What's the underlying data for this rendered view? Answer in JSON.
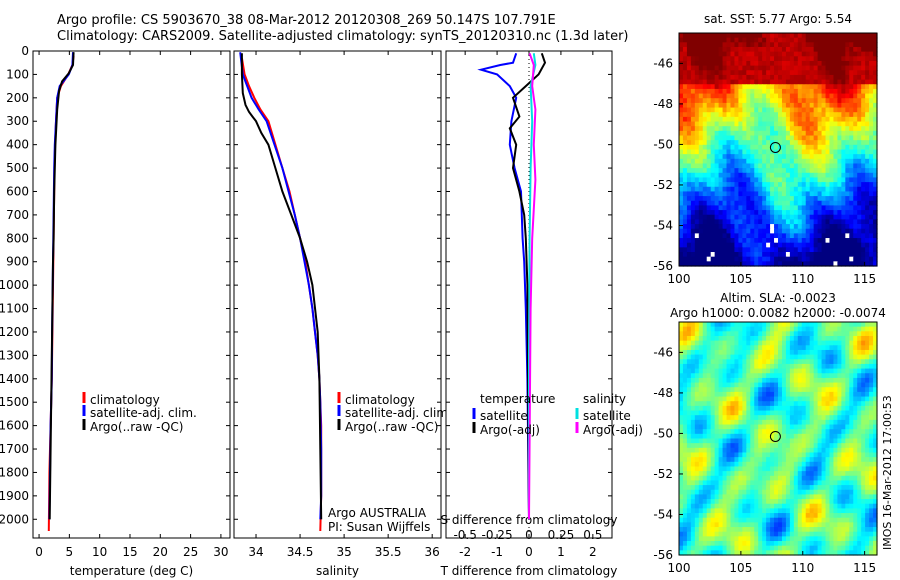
{
  "header": {
    "line1": "Argo profile: CS 5903670_38 08-Mar-2012 20120308_269 50.147S 107.791E",
    "line2": "Climatology: CARS2009. Satellite-adjusted climatology: synTS_20120310.nc (1.3d later)"
  },
  "colors": {
    "clim": "#ff0000",
    "sat": "#0000ff",
    "argo": "#000000",
    "cyan": "#00e0e0",
    "magenta": "#ff00ff"
  },
  "chart_data": [
    {
      "type": "line",
      "xlabel": "temperature (deg C)",
      "ylim": [
        2080,
        0
      ],
      "xlim": [
        -1,
        31.5
      ],
      "xticks": [
        0,
        5,
        10,
        15,
        20,
        25,
        30
      ],
      "yticks": [
        0,
        100,
        200,
        300,
        400,
        500,
        600,
        700,
        800,
        900,
        1000,
        1100,
        1200,
        1300,
        1400,
        1500,
        1600,
        1700,
        1800,
        1900,
        2000
      ],
      "legend": [
        "climatology",
        "satellite-adj. clim.",
        "Argo(..raw -QC)"
      ],
      "series": [
        {
          "name": "climatology",
          "color": "clim",
          "x": [
            5.7,
            5.5,
            4.8,
            3.6,
            3.0,
            2.8,
            2.65,
            2.55,
            2.5,
            2.45,
            2.4,
            2.35,
            2.3,
            2.25,
            2.2,
            2.1,
            2.0,
            1.9,
            1.8,
            1.7,
            1.6
          ],
          "y": [
            20,
            60,
            100,
            150,
            200,
            300,
            400,
            500,
            600,
            700,
            800,
            900,
            1000,
            1100,
            1200,
            1400,
            1500,
            1600,
            1700,
            1800,
            2050
          ]
        },
        {
          "name": "satellite-adj. clim.",
          "color": "sat",
          "x": [
            5.6,
            5.5,
            4.9,
            3.4,
            3.0,
            2.8,
            2.6,
            2.5,
            2.45,
            2.4,
            2.35,
            2.3,
            2.25,
            2.2,
            2.15,
            2.1,
            2.0,
            1.9,
            1.8,
            1.7
          ],
          "y": [
            5,
            60,
            100,
            150,
            200,
            300,
            400,
            500,
            600,
            700,
            800,
            900,
            1000,
            1100,
            1200,
            1400,
            1500,
            1600,
            1800,
            2000
          ]
        },
        {
          "name": "Argo(..raw -QC)",
          "color": "argo",
          "x": [
            5.7,
            5.6,
            4.9,
            3.8,
            3.3,
            3.0,
            2.9,
            2.7,
            2.6,
            2.5,
            2.45,
            2.4,
            2.3,
            2.25,
            2.2,
            2.1,
            2.0,
            1.9,
            1.8,
            1.75
          ],
          "y": [
            5,
            60,
            95,
            130,
            170,
            250,
            300,
            400,
            500,
            600,
            700,
            800,
            900,
            1000,
            1100,
            1300,
            1500,
            1700,
            1900,
            2000
          ]
        }
      ]
    },
    {
      "type": "line",
      "xlabel": "salinity",
      "ylim": [
        2080,
        0
      ],
      "xlim": [
        33.75,
        36.1
      ],
      "xticks": [
        34,
        34.5,
        35,
        35.5,
        36
      ],
      "xtick_labels": [
        "34",
        "34.5",
        "35",
        "35.5",
        "36"
      ],
      "legend": [
        "climatology",
        "satellite-adj. clim.",
        "Argo(..raw -QC)"
      ],
      "annotation": [
        "Argo AUSTRALIA",
        "PI: Susan Wijffels"
      ],
      "series": [
        {
          "name": "climatology",
          "color": "clim",
          "x": [
            33.84,
            33.87,
            33.92,
            33.98,
            34.05,
            34.14,
            34.22,
            34.3,
            34.38,
            34.44,
            34.5,
            34.56,
            34.6,
            34.64,
            34.67,
            34.7,
            34.72,
            34.73,
            34.74,
            34.74,
            34.74,
            34.73
          ],
          "y": [
            30,
            100,
            150,
            200,
            250,
            300,
            400,
            500,
            600,
            700,
            800,
            900,
            1000,
            1100,
            1200,
            1300,
            1400,
            1500,
            1600,
            1700,
            1900,
            2050
          ]
        },
        {
          "name": "satellite-adj. clim.",
          "color": "sat",
          "x": [
            33.82,
            33.85,
            33.9,
            33.95,
            34.03,
            34.12,
            34.21,
            34.3,
            34.37,
            34.44,
            34.5,
            34.55,
            34.6,
            34.64,
            34.67,
            34.7,
            34.72,
            34.73,
            34.74,
            34.74,
            34.73
          ],
          "y": [
            5,
            100,
            150,
            200,
            250,
            300,
            400,
            500,
            600,
            700,
            800,
            900,
            1000,
            1100,
            1200,
            1300,
            1400,
            1500,
            1700,
            1900,
            2000
          ]
        },
        {
          "name": "Argo(..raw -QC)",
          "color": "argo",
          "x": [
            33.84,
            33.84,
            33.85,
            33.88,
            33.92,
            33.96,
            34.0,
            34.06,
            34.14,
            34.22,
            34.3,
            34.4,
            34.5,
            34.58,
            34.64,
            34.7,
            34.72,
            34.73,
            34.74
          ],
          "y": [
            10,
            100,
            180,
            230,
            260,
            280,
            300,
            350,
            400,
            500,
            600,
            700,
            800,
            900,
            1000,
            1200,
            1400,
            1700,
            2000
          ]
        }
      ]
    },
    {
      "type": "line",
      "xlabel": "T difference from climatology",
      "xlim": [
        -2.6,
        2.6
      ],
      "xticks": [
        -2,
        -1,
        0,
        1,
        2
      ],
      "top_axis": {
        "label": "S difference from climatology",
        "ticks": [
          "-0.5",
          "-0.25",
          "0",
          "0.25",
          "0.5"
        ]
      },
      "legend_groups": [
        {
          "title": "temperature",
          "items": [
            "satellite",
            "Argo(-adj)"
          ]
        },
        {
          "title": "salinity",
          "items": [
            "satellite",
            "Argo(-adj)"
          ]
        }
      ],
      "series": [
        {
          "name": "satellite",
          "group": "temperature",
          "color": "sat",
          "x": [
            -0.4,
            -0.5,
            -0.9,
            -1.5,
            -1.0,
            -0.6,
            -0.4,
            -0.55,
            -0.6,
            -0.45,
            -0.25,
            -0.2,
            -0.15,
            -0.1,
            -0.05,
            0
          ],
          "y": [
            10,
            50,
            60,
            80,
            100,
            150,
            200,
            300,
            400,
            500,
            600,
            800,
            900,
            1100,
            1400,
            2000
          ]
        },
        {
          "name": "Argo(-adj)",
          "group": "temperature",
          "color": "argo",
          "x": [
            0.4,
            0.5,
            0.3,
            -0.1,
            -0.5,
            -0.3,
            -0.6,
            -0.4,
            -0.5,
            -0.3,
            -0.15,
            -0.1,
            -0.05,
            0
          ],
          "y": [
            10,
            50,
            100,
            150,
            200,
            280,
            330,
            400,
            500,
            600,
            700,
            800,
            1000,
            2000
          ]
        },
        {
          "name": "satellite",
          "group": "salinity",
          "color": "cyan",
          "x": [
            0.15,
            0.2,
            0.05,
            0.1,
            0.05,
            0.02,
            0.0,
            0.0
          ],
          "y": [
            10,
            60,
            150,
            300,
            500,
            800,
            1300,
            2000
          ]
        },
        {
          "name": "Argo(-adj)",
          "group": "salinity",
          "color": "magenta",
          "x": [
            0.02,
            0.15,
            0.1,
            0.2,
            0.15,
            0.2,
            0.1,
            0.05,
            0.0
          ],
          "y": [
            10,
            60,
            150,
            250,
            400,
            550,
            800,
            1100,
            2000
          ]
        }
      ]
    },
    {
      "type": "heatmap",
      "title": "sat. SST: 5.77 Argo: 5.54",
      "xlim": [
        100,
        116
      ],
      "ylim": [
        -56,
        -44.5
      ],
      "xticks": [
        100,
        105,
        110,
        115
      ],
      "yticks": [
        -46,
        -48,
        -50,
        -52,
        -54,
        -56
      ],
      "marker": {
        "lon": 107.79,
        "lat": -50.15
      }
    },
    {
      "type": "heatmap",
      "title": "Altim. SLA: -0.0023",
      "subtitle": "Argo h1000: 0.0082 h2000: -0.0074",
      "xlim": [
        100,
        116
      ],
      "ylim": [
        -56,
        -44.5
      ],
      "xticks": [
        100,
        105,
        110,
        115
      ],
      "yticks": [
        -46,
        -48,
        -50,
        -52,
        -54,
        -56
      ],
      "marker": {
        "lon": 107.79,
        "lat": -50.15
      }
    }
  ],
  "side_label": "IMOS 16-Mar-2012 17:00:53"
}
